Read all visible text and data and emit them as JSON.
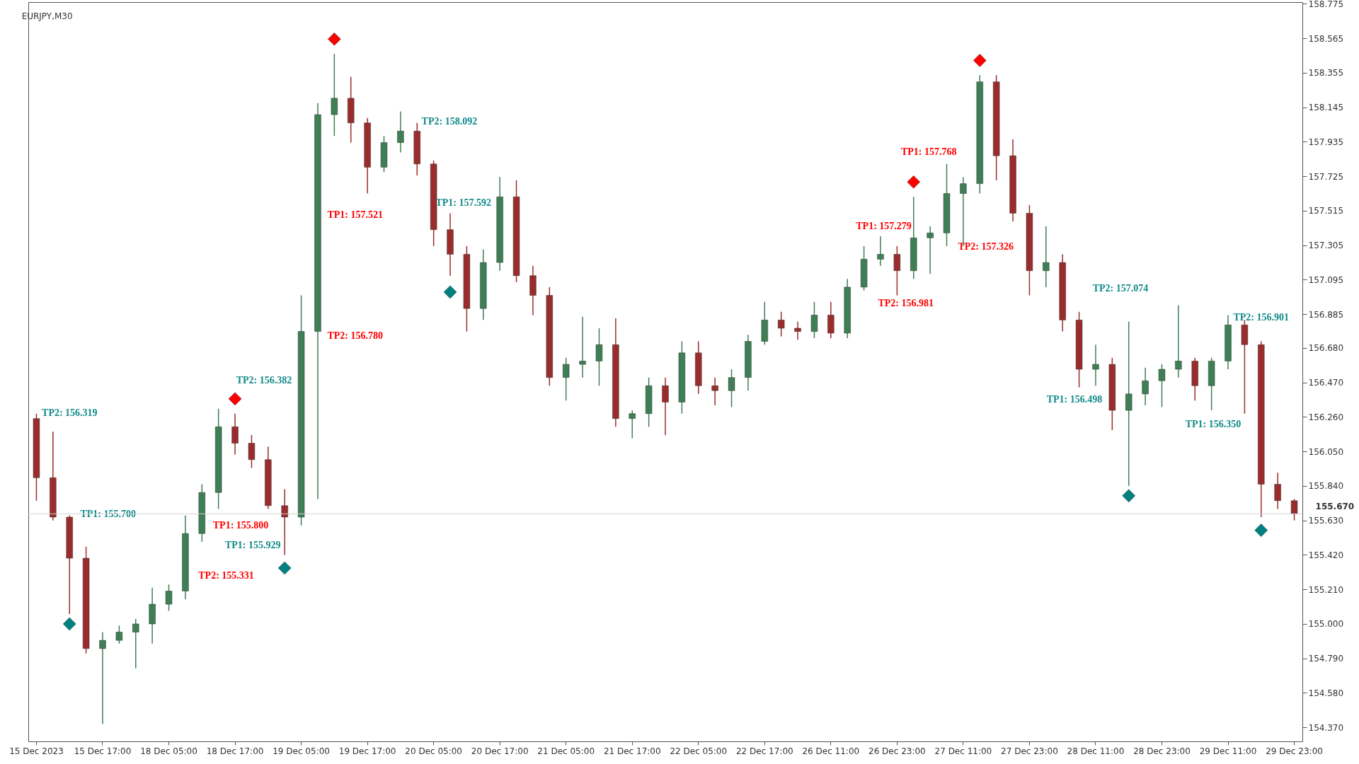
{
  "chart_data": {
    "type": "candlestick",
    "title": "EURJPY,M30",
    "categories": [
      "15 Dec 2023",
      null,
      null,
      null,
      "15 Dec 17:00",
      null,
      null,
      null,
      "18 Dec 05:00",
      null,
      null,
      null,
      "18 Dec 17:00",
      null,
      null,
      null,
      "19 Dec 05:00",
      null,
      null,
      null,
      "19 Dec 17:00",
      null,
      null,
      null,
      "20 Dec 05:00",
      null,
      null,
      null,
      "20 Dec 17:00",
      null,
      null,
      null,
      "21 Dec 05:00",
      null,
      null,
      null,
      "21 Dec 17:00",
      null,
      null,
      null,
      "22 Dec 05:00",
      null,
      null,
      null,
      "22 Dec 17:00",
      null,
      null,
      null,
      "26 Dec 11:00",
      null,
      null,
      null,
      "26 Dec 23:00",
      null,
      null,
      null,
      "27 Dec 11:00",
      null,
      null,
      null,
      "27 Dec 23:00",
      null,
      null,
      null,
      "28 Dec 11:00",
      null,
      null,
      null,
      "28 Dec 23:00",
      null,
      null,
      null,
      "29 Dec 11:00",
      null,
      null,
      null,
      "29 Dec 23:00"
    ],
    "ohlc": [
      [
        156.25,
        156.28,
        155.75,
        155.89
      ],
      [
        155.89,
        156.17,
        155.63,
        155.65
      ],
      [
        155.65,
        155.66,
        155.06,
        155.4
      ],
      [
        155.4,
        155.47,
        154.82,
        154.85
      ],
      [
        154.85,
        154.95,
        154.39,
        154.9
      ],
      [
        154.9,
        154.99,
        154.88,
        154.95
      ],
      [
        154.95,
        155.03,
        154.73,
        155.0
      ],
      [
        155.0,
        155.22,
        154.88,
        155.12
      ],
      [
        155.12,
        155.24,
        155.08,
        155.2
      ],
      [
        155.2,
        155.66,
        155.15,
        155.55
      ],
      [
        155.55,
        155.85,
        155.5,
        155.8
      ],
      [
        155.8,
        156.31,
        155.7,
        156.2
      ],
      [
        156.2,
        156.28,
        156.03,
        156.1
      ],
      [
        156.1,
        156.15,
        155.95,
        156.0
      ],
      [
        156.0,
        156.08,
        155.7,
        155.72
      ],
      [
        155.72,
        155.82,
        155.42,
        155.65
      ],
      [
        155.65,
        157.0,
        155.6,
        156.78
      ],
      [
        156.78,
        158.17,
        155.76,
        158.1
      ],
      [
        158.1,
        158.47,
        157.97,
        158.2
      ],
      [
        158.2,
        158.33,
        157.93,
        158.05
      ],
      [
        158.05,
        158.08,
        157.62,
        157.78
      ],
      [
        157.78,
        157.97,
        157.75,
        157.93
      ],
      [
        157.93,
        158.12,
        157.87,
        158.0
      ],
      [
        158.0,
        158.05,
        157.73,
        157.8
      ],
      [
        157.8,
        157.82,
        157.3,
        157.4
      ],
      [
        157.4,
        157.5,
        157.12,
        157.25
      ],
      [
        157.25,
        157.3,
        156.78,
        156.92
      ],
      [
        156.92,
        157.28,
        156.85,
        157.2
      ],
      [
        157.2,
        157.72,
        157.15,
        157.6
      ],
      [
        157.6,
        157.7,
        157.08,
        157.12
      ],
      [
        157.12,
        157.18,
        156.88,
        157.0
      ],
      [
        157.0,
        157.05,
        156.45,
        156.5
      ],
      [
        156.5,
        156.62,
        156.36,
        156.58
      ],
      [
        156.58,
        156.87,
        156.5,
        156.6
      ],
      [
        156.6,
        156.8,
        156.45,
        156.7
      ],
      [
        156.7,
        156.86,
        156.2,
        156.25
      ],
      [
        156.25,
        156.3,
        156.13,
        156.28
      ],
      [
        156.28,
        156.5,
        156.2,
        156.45
      ],
      [
        156.45,
        156.5,
        156.15,
        156.35
      ],
      [
        156.35,
        156.72,
        156.28,
        156.65
      ],
      [
        156.65,
        156.72,
        156.4,
        156.45
      ],
      [
        156.45,
        156.5,
        156.33,
        156.42
      ],
      [
        156.42,
        156.55,
        156.32,
        156.5
      ],
      [
        156.5,
        156.76,
        156.42,
        156.72
      ],
      [
        156.72,
        156.96,
        156.7,
        156.85
      ],
      [
        156.85,
        156.9,
        156.75,
        156.8
      ],
      [
        156.8,
        156.84,
        156.73,
        156.78
      ],
      [
        156.78,
        156.96,
        156.74,
        156.88
      ],
      [
        156.88,
        156.96,
        156.74,
        156.77
      ],
      [
        156.77,
        157.1,
        156.74,
        157.05
      ],
      [
        157.05,
        157.3,
        157.03,
        157.22
      ],
      [
        157.22,
        157.36,
        157.18,
        157.25
      ],
      [
        157.25,
        157.3,
        157.0,
        157.15
      ],
      [
        157.15,
        157.6,
        157.1,
        157.35
      ],
      [
        157.35,
        157.42,
        157.13,
        157.38
      ],
      [
        157.38,
        157.8,
        157.3,
        157.62
      ],
      [
        157.62,
        157.72,
        157.3,
        157.68
      ],
      [
        157.68,
        158.34,
        157.62,
        158.3
      ],
      [
        158.3,
        158.34,
        157.7,
        157.85
      ],
      [
        157.85,
        157.95,
        157.45,
        157.5
      ],
      [
        157.5,
        157.55,
        157.0,
        157.15
      ],
      [
        157.15,
        157.42,
        157.05,
        157.2
      ],
      [
        157.2,
        157.25,
        156.78,
        156.85
      ],
      [
        156.85,
        156.9,
        156.44,
        156.55
      ],
      [
        156.55,
        156.7,
        156.45,
        156.58
      ],
      [
        156.58,
        156.62,
        156.18,
        156.3
      ],
      [
        156.3,
        156.84,
        155.84,
        156.4
      ],
      [
        156.4,
        156.56,
        156.33,
        156.48
      ],
      [
        156.48,
        156.58,
        156.32,
        156.55
      ],
      [
        156.55,
        156.94,
        156.5,
        156.6
      ],
      [
        156.6,
        156.62,
        156.36,
        156.45
      ],
      [
        156.45,
        156.62,
        156.3,
        156.6
      ],
      [
        156.6,
        156.88,
        156.55,
        156.82
      ],
      [
        156.82,
        156.85,
        156.28,
        156.7
      ],
      [
        156.7,
        156.72,
        155.65,
        155.85
      ],
      [
        155.85,
        155.92,
        155.7,
        155.75
      ],
      [
        155.75,
        155.76,
        155.63,
        155.67
      ]
    ],
    "colors": [
      "#9b2c2c",
      "#9b2c2c",
      "#9b2c2c",
      "#9b2c2c",
      "#3f7f55",
      "#3f7f55",
      "#3f7f55",
      "#3f7f55",
      "#3f7f55",
      "#3f7f55",
      "#3f7f55",
      "#3f7f55",
      "#9b2c2c",
      "#9b2c2c",
      "#9b2c2c",
      "#9b2c2c",
      "#3f7f55",
      "#3f7f55",
      "#3f7f55",
      "#9b2c2c",
      "#9b2c2c",
      "#3f7f55",
      "#3f7f55",
      "#9b2c2c",
      "#9b2c2c",
      "#9b2c2c",
      "#9b2c2c",
      "#3f7f55",
      "#3f7f55",
      "#9b2c2c",
      "#9b2c2c",
      "#9b2c2c",
      "#3f7f55",
      "#3f7f55",
      "#3f7f55",
      "#9b2c2c",
      "#3f7f55",
      "#3f7f55",
      "#9b2c2c",
      "#3f7f55",
      "#9b2c2c",
      "#9b2c2c",
      "#3f7f55",
      "#3f7f55",
      "#3f7f55",
      "#9b2c2c",
      "#9b2c2c",
      "#3f7f55",
      "#9b2c2c",
      "#3f7f55",
      "#3f7f55",
      "#3f7f55",
      "#9b2c2c",
      "#3f7f55",
      "#3f7f55",
      "#3f7f55",
      "#3f7f55",
      "#3f7f55",
      "#9b2c2c",
      "#9b2c2c",
      "#9b2c2c",
      "#3f7f55",
      "#9b2c2c",
      "#9b2c2c",
      "#3f7f55",
      "#9b2c2c",
      "#3f7f55",
      "#3f7f55",
      "#3f7f55",
      "#3f7f55",
      "#9b2c2c",
      "#3f7f55",
      "#3f7f55",
      "#9b2c2c",
      "#9b2c2c",
      "#9b2c2c",
      "#9b2c2c"
    ],
    "series": [
      {
        "type": "scatter",
        "color": "#ff0000",
        "marker": "diamond",
        "values": [
          null,
          null,
          null,
          null,
          null,
          null,
          null,
          null,
          null,
          null,
          null,
          null,
          156.37,
          null,
          null,
          null,
          null,
          null,
          158.56,
          null,
          null,
          null,
          null,
          null,
          null,
          null,
          null,
          null,
          null,
          null,
          null,
          null,
          null,
          null,
          null,
          null,
          null,
          null,
          null,
          null,
          null,
          null,
          null,
          null,
          null,
          null,
          null,
          null,
          null,
          null,
          null,
          null,
          null,
          157.69,
          null,
          null,
          null,
          158.43,
          null,
          null,
          null,
          null,
          null,
          null,
          null,
          null,
          null,
          null,
          null,
          null,
          null,
          null,
          null,
          null,
          null,
          null,
          null
        ]
      },
      {
        "type": "scatter",
        "color": "#008080",
        "marker": "diamond",
        "values": [
          null,
          null,
          155.0,
          null,
          null,
          null,
          null,
          null,
          null,
          null,
          null,
          null,
          null,
          null,
          null,
          155.34,
          null,
          null,
          null,
          null,
          null,
          null,
          null,
          null,
          null,
          157.02,
          null,
          null,
          null,
          null,
          null,
          null,
          null,
          null,
          null,
          null,
          null,
          null,
          null,
          null,
          null,
          null,
          null,
          null,
          null,
          null,
          null,
          null,
          null,
          null,
          null,
          null,
          null,
          null,
          null,
          null,
          null,
          null,
          null,
          null,
          null,
          null,
          null,
          null,
          null,
          null,
          155.78,
          null,
          null,
          null,
          null,
          null,
          null,
          null,
          155.57,
          null,
          null
        ]
      }
    ],
    "ylim": [
      154.285,
      158.785
    ],
    "yticks": [
      158.775,
      158.565,
      158.355,
      158.145,
      157.935,
      157.725,
      157.515,
      157.305,
      157.095,
      156.885,
      {
        "value": 156.68,
        "label": "156.680"
      },
      {
        "value": 156.47,
        "label": "156.470"
      },
      {
        "value": 156.26,
        "label": "156.260"
      },
      {
        "value": 156.05,
        "label": "156.050"
      },
      {
        "value": 155.84,
        "label": "155.840"
      },
      {
        "value": 155.63,
        "label": "155.630"
      },
      {
        "value": 155.42,
        "label": "155.420"
      },
      {
        "value": 155.21,
        "label": "155.210"
      },
      {
        "value": 155.0,
        "label": "155.000"
      },
      {
        "value": 154.79,
        "label": "154.790"
      },
      {
        "value": 154.58,
        "label": "154.580"
      },
      {
        "value": 154.37,
        "label": "154.370"
      }
    ],
    "ref_lines": [
      {
        "axis": "y",
        "value": 155.67,
        "label": "155.670",
        "color": "#d4d4d4"
      }
    ],
    "annotations": [
      "TP2: 156.319",
      "TP1: 155.700",
      "TP1: 155.800",
      "TP2: 155.331",
      "TP2: 156.382",
      "TP1: 155.929",
      "TP1: 157.521",
      "TP2: 156.780",
      "TP2: 158.092",
      "TP1: 157.592",
      "TP1: 157.279",
      "TP2: 156.981",
      "TP1: 157.768",
      "TP2: 157.326",
      "TP2: 157.074",
      "TP1: 156.498",
      "TP2: 156.901",
      "TP1: 156.350"
    ]
  }
}
